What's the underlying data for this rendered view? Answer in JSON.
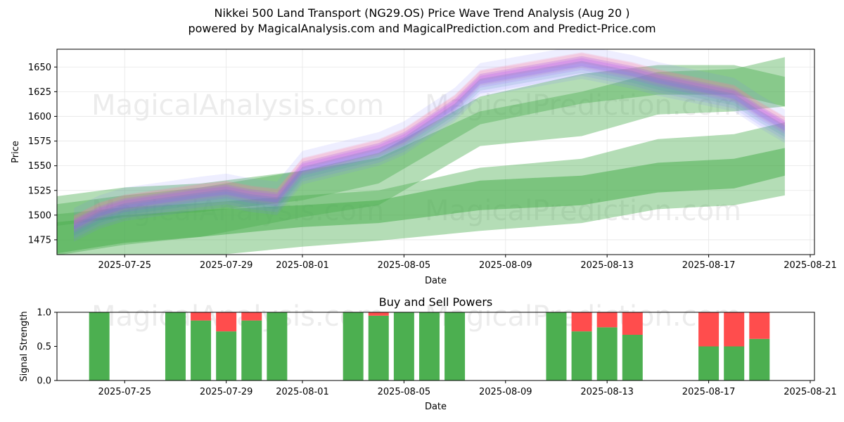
{
  "header": {
    "title": "Nikkei 500 Land Transport (NG29.OS) Price Wave Trend Analysis (Aug 20 )",
    "subtitle": "powered by MagicalAnalysis.com and MagicalPrediction.com and Predict-Price.com"
  },
  "watermarks": [
    "MagicalAnalysis.com",
    "MagicalPrediction.com"
  ],
  "colors": {
    "buy": "#4caf50",
    "sell": "#ff4d4d",
    "band_green": "#4caf50",
    "band_blue": "#7b7bff",
    "band_red": "#ff7b9a",
    "band_purple": "#b04cff"
  },
  "chart_data": [
    {
      "type": "line",
      "title": "",
      "xlabel": "Date",
      "ylabel": "Price",
      "ylim": [
        1460,
        1668
      ],
      "xlim": [
        "2025-07-22T08:00",
        "2025-08-21T04:00"
      ],
      "grid": true,
      "x_ticks": [
        "2025-07-25",
        "2025-07-29",
        "2025-08-01",
        "2025-08-05",
        "2025-08-09",
        "2025-08-13",
        "2025-08-17",
        "2025-08-21"
      ],
      "y_ticks": [
        1475,
        1500,
        1525,
        1550,
        1575,
        1600,
        1625,
        1650
      ],
      "price_wave": {
        "dates": [
          "2025-07-23",
          "2025-07-24",
          "2025-07-25",
          "2025-07-28",
          "2025-07-29",
          "2025-07-30",
          "2025-07-31",
          "2025-08-01",
          "2025-08-04",
          "2025-08-05",
          "2025-08-06",
          "2025-08-07",
          "2025-08-08",
          "2025-08-12",
          "2025-08-13",
          "2025-08-14",
          "2025-08-15",
          "2025-08-18",
          "2025-08-19",
          "2025-08-20"
        ],
        "mid": [
          1490,
          1503,
          1511,
          1522,
          1525,
          1520,
          1517,
          1548,
          1567,
          1578,
          1595,
          1612,
          1637,
          1655,
          1650,
          1645,
          1638,
          1622,
          1605,
          1590
        ]
      },
      "trend_bands": [
        {
          "dates": [
            "2025-07-22",
            "2025-07-25",
            "2025-07-28",
            "2025-08-01",
            "2025-08-04",
            "2025-08-08",
            "2025-08-12",
            "2025-08-15",
            "2025-08-18",
            "2025-08-20"
          ],
          "upper": [
            1518,
            1528,
            1532,
            1545,
            1563,
            1620,
            1643,
            1652,
            1652,
            1640
          ],
          "lower": [
            1488,
            1498,
            1503,
            1515,
            1532,
            1592,
            1613,
            1622,
            1622,
            1610
          ]
        },
        {
          "dates": [
            "2025-07-22",
            "2025-07-25",
            "2025-07-28",
            "2025-08-01",
            "2025-08-04",
            "2025-08-08",
            "2025-08-12",
            "2025-08-15",
            "2025-08-18",
            "2025-08-20"
          ],
          "upper": [
            1510,
            1520,
            1528,
            1545,
            1558,
            1605,
            1625,
            1645,
            1648,
            1660
          ],
          "lower": [
            1458,
            1470,
            1478,
            1498,
            1510,
            1570,
            1580,
            1602,
            1605,
            1610
          ]
        },
        {
          "dates": [
            "2025-07-22",
            "2025-07-25",
            "2025-07-28",
            "2025-08-01",
            "2025-08-04",
            "2025-08-08",
            "2025-08-12",
            "2025-08-15",
            "2025-08-18",
            "2025-08-20"
          ],
          "upper": [
            1500,
            1508,
            1512,
            1520,
            1525,
            1548,
            1557,
            1577,
            1582,
            1594
          ],
          "lower": [
            1445,
            1452,
            1458,
            1468,
            1474,
            1484,
            1492,
            1506,
            1510,
            1520
          ]
        },
        {
          "dates": [
            "2025-07-22",
            "2025-07-25",
            "2025-07-28",
            "2025-08-01",
            "2025-08-04",
            "2025-08-08",
            "2025-08-12",
            "2025-08-15",
            "2025-08-18",
            "2025-08-20"
          ],
          "upper": [
            1492,
            1500,
            1505,
            1510,
            1515,
            1535,
            1540,
            1553,
            1557,
            1568
          ],
          "lower": [
            1460,
            1472,
            1478,
            1488,
            1492,
            1505,
            1510,
            1523,
            1527,
            1540
          ]
        }
      ]
    },
    {
      "type": "bar",
      "title": "Buy and Sell Powers",
      "xlabel": "Date",
      "ylabel": "Signal Strength",
      "ylim": [
        0,
        1
      ],
      "xlim": [
        "2025-07-22T08:00",
        "2025-08-21T04:00"
      ],
      "x_ticks": [
        "2025-07-25",
        "2025-07-29",
        "2025-08-01",
        "2025-08-05",
        "2025-08-09",
        "2025-08-13",
        "2025-08-17",
        "2025-08-21"
      ],
      "y_ticks": [
        "0.0",
        "0.5",
        "1.0"
      ],
      "categories": [
        "2025-07-24",
        "2025-07-27",
        "2025-07-28",
        "2025-07-29",
        "2025-07-30",
        "2025-07-31",
        "2025-08-03",
        "2025-08-04",
        "2025-08-05",
        "2025-08-06",
        "2025-08-07",
        "2025-08-11",
        "2025-08-12",
        "2025-08-13",
        "2025-08-14",
        "2025-08-17",
        "2025-08-18",
        "2025-08-19"
      ],
      "series": [
        {
          "name": "Buy",
          "values": [
            1.0,
            1.0,
            0.88,
            0.72,
            0.88,
            1.0,
            1.0,
            0.95,
            1.0,
            1.0,
            1.0,
            1.0,
            0.72,
            0.78,
            0.67,
            0.5,
            0.5,
            0.61
          ]
        },
        {
          "name": "Sell",
          "values": [
            0.0,
            0.0,
            0.12,
            0.28,
            0.12,
            0.0,
            0.0,
            0.05,
            0.0,
            0.0,
            0.0,
            0.0,
            0.28,
            0.22,
            0.33,
            0.5,
            0.5,
            0.39
          ]
        }
      ]
    }
  ]
}
